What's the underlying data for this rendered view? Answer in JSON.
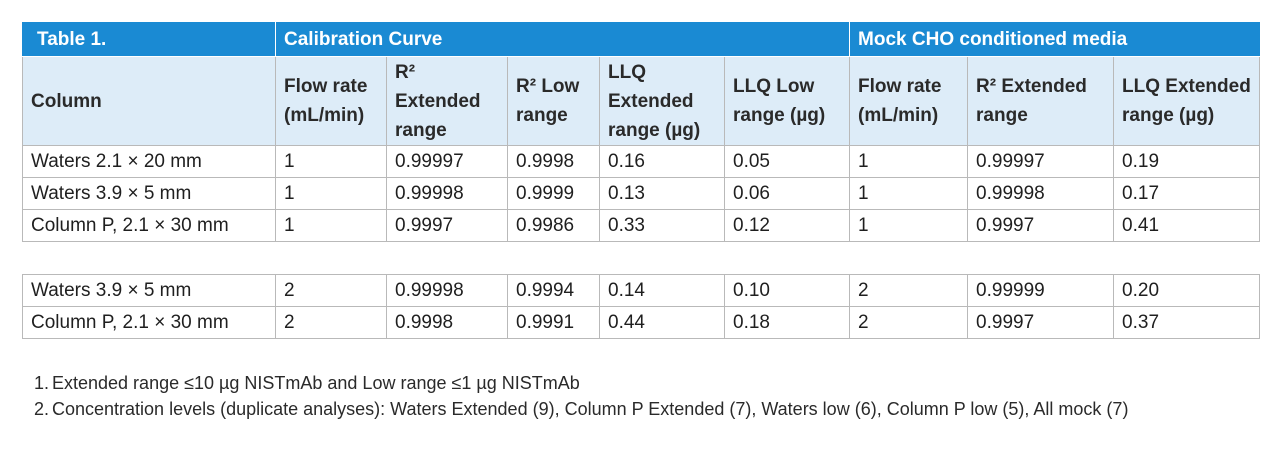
{
  "table": {
    "title": "Table 1.",
    "group_calibration": "Calibration Curve",
    "group_mock": "Mock CHO conditioned media",
    "headers": {
      "column": "Column",
      "flow_rate": "Flow rate (mL/min)",
      "r2_extended": "R² Extended range",
      "r2_low": "R² Low range",
      "llq_extended": "LLQ Extended range (µg)",
      "llq_low": "LLQ Low range (µg)",
      "mock_flow_rate": "Flow rate (mL/min)",
      "mock_r2_extended": "R² Extended range",
      "mock_llq_extended": "LLQ Extended range (µg)"
    },
    "rows_group1": [
      [
        "Waters 2.1 × 20 mm",
        "1",
        "0.99997",
        "0.9998",
        "0.16",
        "0.05",
        "1",
        "0.99997",
        "0.19"
      ],
      [
        "Waters 3.9 × 5 mm",
        "1",
        "0.99998",
        "0.9999",
        "0.13",
        "0.06",
        "1",
        "0.99998",
        "0.17"
      ],
      [
        "Column P, 2.1 × 30 mm",
        "1",
        "0.9997",
        "0.9986",
        "0.33",
        "0.12",
        "1",
        "0.9997",
        "0.41"
      ]
    ],
    "rows_group2": [
      [
        "Waters 3.9 × 5 mm",
        "2",
        "0.99998",
        "0.9994",
        "0.14",
        "0.10",
        "2",
        "0.99999",
        "0.20"
      ],
      [
        "Column P, 2.1 × 30 mm",
        "2",
        "0.9998",
        "0.9991",
        "0.44",
        "0.18",
        "2",
        "0.9997",
        "0.37"
      ]
    ]
  },
  "notes": [
    {
      "num": "1.",
      "text": "Extended range ≤10 µg NISTmAb and Low range ≤1 µg NISTmAb"
    },
    {
      "num": "2.",
      "text": "Concentration levels (duplicate analyses): Waters Extended (9), Column P Extended (7), Waters low (6), Column P low (5), All mock (7)"
    }
  ],
  "colors": {
    "header_blue": "#1a8ad3",
    "subheader_lightblue": "#ddecf8",
    "border_gray": "#b9b9b9"
  }
}
